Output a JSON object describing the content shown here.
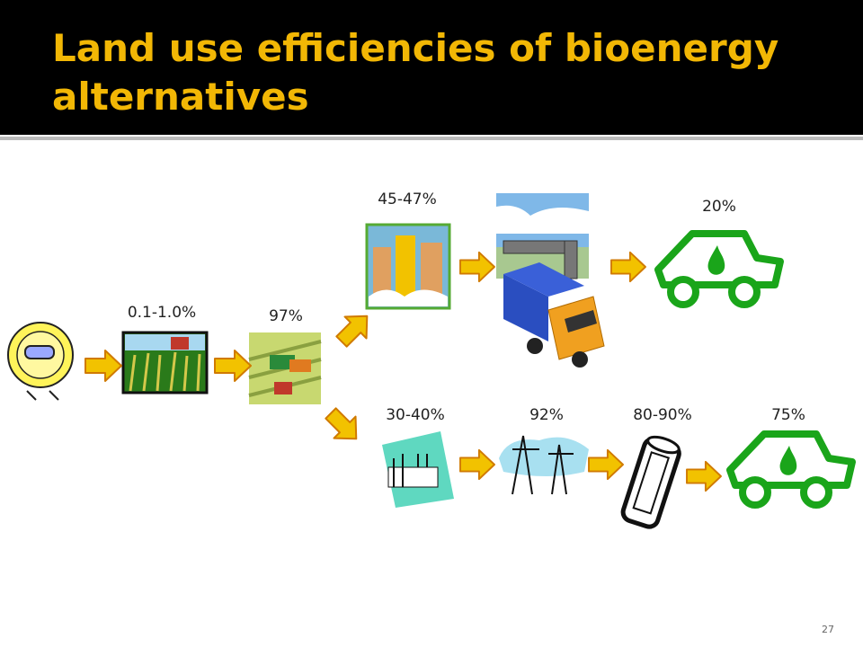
{
  "header": {
    "title_lines": [
      "Land use efficiencies of bioenergy",
      "alternatives"
    ]
  },
  "efficiency_labels": [
    "0.1-1.0%",
    "97%",
    "45-47%",
    "20%",
    "30-40%",
    "92%",
    "80-90%",
    "75%"
  ],
  "page_number": "27"
}
